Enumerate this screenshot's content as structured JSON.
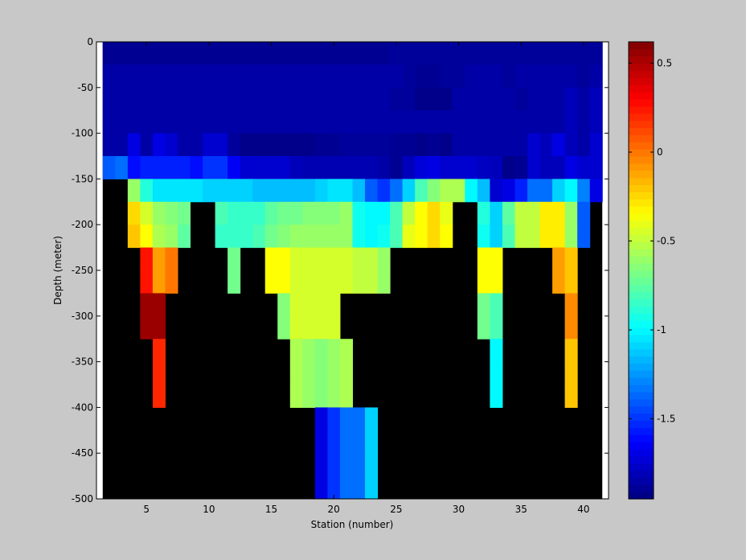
{
  "chart_data": {
    "type": "heatmap",
    "title": "",
    "xlabel": "Station (number)",
    "ylabel": "Depth (meter)",
    "xlim": [
      1,
      42
    ],
    "ylim": [
      -500,
      0
    ],
    "x_ticks": [
      5,
      10,
      15,
      20,
      25,
      30,
      35,
      40
    ],
    "y_ticks": [
      0,
      -50,
      -100,
      -150,
      -200,
      -250,
      -300,
      -350,
      -400,
      -450,
      -500
    ],
    "colorbar": {
      "colormap": "jet",
      "range": [
        -1.95,
        0.62
      ],
      "ticks": [
        0.5,
        0,
        -0.5,
        -1,
        -1.5
      ],
      "tick_labels": [
        "0.5",
        "0",
        "-0.5",
        "-1",
        "-1.5"
      ]
    },
    "missing_color": "#000000",
    "background_color": "#c8c8c8",
    "station_range": [
      2,
      41
    ],
    "depth_bins": [
      {
        "top": 0,
        "bottom": -25,
        "values": "all stations approx -1.9"
      },
      {
        "top": -25,
        "bottom": -100,
        "values": "all stations approx -1.85"
      }
    ],
    "row_values": [
      [
        -1.9,
        -1.9,
        -1.9,
        -1.9,
        -1.9,
        -1.9,
        -1.9,
        -1.9,
        -1.9,
        -1.9,
        -1.9,
        -1.9,
        -1.9,
        -1.9,
        -1.9,
        -1.9,
        -1.9,
        -1.9,
        -1.9,
        -1.9,
        -1.9,
        -1.9,
        -1.9,
        -1.88,
        -1.88,
        -1.88,
        -1.88,
        -1.88,
        -1.88,
        -1.88,
        -1.88,
        -1.88,
        -1.88,
        -1.88,
        -1.88,
        -1.88,
        -1.88,
        -1.88,
        -1.88,
        -1.88
      ],
      [
        -1.85,
        -1.85,
        -1.85,
        -1.85,
        -1.85,
        -1.85,
        -1.85,
        -1.85,
        -1.85,
        -1.85,
        -1.85,
        -1.85,
        -1.85,
        -1.85,
        -1.85,
        -1.85,
        -1.85,
        -1.85,
        -1.85,
        -1.85,
        -1.85,
        -1.85,
        -1.85,
        -1.85,
        -1.88,
        -1.9,
        -1.9,
        -1.88,
        -1.88,
        -1.85,
        -1.85,
        -1.85,
        -1.88,
        -1.85,
        -1.85,
        -1.85,
        -1.85,
        -1.85,
        -1.88,
        -1.85
      ],
      [
        -1.85,
        -1.85,
        -1.85,
        -1.85,
        -1.85,
        -1.85,
        -1.85,
        -1.85,
        -1.85,
        -1.85,
        -1.85,
        -1.85,
        -1.85,
        -1.85,
        -1.85,
        -1.85,
        -1.85,
        -1.85,
        -1.85,
        -1.85,
        -1.85,
        -1.85,
        -1.85,
        -1.88,
        -1.88,
        -1.92,
        -1.92,
        -1.92,
        -1.85,
        -1.85,
        -1.85,
        -1.85,
        -1.85,
        -1.88,
        -1.85,
        -1.85,
        -1.85,
        -1.8,
        -1.85,
        -1.8
      ],
      [
        -1.85,
        -1.85,
        -1.85,
        -1.85,
        -1.85,
        -1.85,
        -1.85,
        -1.85,
        -1.85,
        -1.85,
        -1.85,
        -1.85,
        -1.85,
        -1.85,
        -1.85,
        -1.85,
        -1.85,
        -1.85,
        -1.85,
        -1.85,
        -1.85,
        -1.85,
        -1.85,
        -1.85,
        -1.85,
        -1.85,
        -1.85,
        -1.85,
        -1.85,
        -1.85,
        -1.85,
        -1.85,
        -1.85,
        -1.85,
        -1.85,
        -1.85,
        -1.85,
        -1.8,
        -1.85,
        -1.8
      ],
      [
        -1.85,
        -1.85,
        -1.7,
        -1.85,
        -1.7,
        -1.75,
        -1.85,
        -1.85,
        -1.75,
        -1.75,
        -1.88,
        -1.92,
        -1.92,
        -1.92,
        -1.92,
        -1.92,
        -1.92,
        -1.9,
        -1.9,
        -1.88,
        -1.88,
        -1.88,
        -1.88,
        -1.9,
        -1.9,
        -1.92,
        -1.9,
        -1.92,
        -1.85,
        -1.85,
        -1.85,
        -1.85,
        -1.85,
        -1.85,
        -1.75,
        -1.8,
        -1.7,
        -1.8,
        -1.85,
        -1.75
      ],
      [
        -1.4,
        -1.35,
        -1.6,
        -1.55,
        -1.55,
        -1.55,
        -1.55,
        -1.6,
        -1.5,
        -1.5,
        -1.65,
        -1.75,
        -1.75,
        -1.75,
        -1.75,
        -1.8,
        -1.82,
        -1.82,
        -1.82,
        -1.82,
        -1.82,
        -1.82,
        -1.85,
        -1.9,
        -1.8,
        -1.72,
        -1.7,
        -1.75,
        -1.75,
        -1.75,
        -1.78,
        -1.8,
        -1.92,
        -1.9,
        -1.75,
        -1.8,
        -1.8,
        -1.7,
        -1.75,
        -1.75
      ],
      [
        null,
        null,
        -0.6,
        -0.9,
        -1.05,
        -1.05,
        -1.05,
        -1.05,
        -1.1,
        -1.1,
        -1.1,
        -1.1,
        -1.15,
        -1.15,
        -1.15,
        -1.15,
        -1.15,
        -1.1,
        -1.05,
        -1.05,
        -1.15,
        -1.4,
        -1.5,
        -1.35,
        -1.1,
        -0.8,
        -0.65,
        -0.55,
        -0.55,
        -1.0,
        -1.15,
        -1.75,
        -1.7,
        -1.55,
        -1.35,
        -1.35,
        -1.1,
        -1.0,
        -1.3,
        -1.7
      ],
      [
        null,
        null,
        -0.25,
        -0.45,
        -0.6,
        -0.65,
        -0.7,
        null,
        null,
        -0.8,
        -0.85,
        -0.85,
        -0.85,
        -0.75,
        -0.7,
        -0.7,
        -0.65,
        -0.65,
        -0.65,
        -0.6,
        -0.95,
        -1.0,
        -1.0,
        -0.8,
        -0.5,
        -0.35,
        -0.25,
        -0.4,
        null,
        null,
        -0.9,
        -1.1,
        -0.75,
        -0.5,
        -0.5,
        -0.3,
        -0.3,
        -0.6,
        -1.4
      ],
      [
        null,
        null,
        -0.2,
        -0.35,
        -0.55,
        -0.6,
        -0.75,
        null,
        null,
        -0.85,
        -0.85,
        -0.85,
        -0.8,
        -0.7,
        -0.65,
        -0.6,
        -0.6,
        -0.6,
        -0.6,
        -0.6,
        -0.95,
        -1.0,
        -0.95,
        -0.8,
        -0.4,
        -0.35,
        -0.25,
        -0.35,
        null,
        null,
        -0.95,
        -1.1,
        -0.8,
        -0.5,
        -0.5,
        -0.3,
        -0.3,
        -0.6,
        -1.4
      ],
      [
        null,
        null,
        null,
        0.25,
        -0.1,
        0.0,
        null,
        null,
        null,
        null,
        -0.7,
        null,
        null,
        -0.35,
        -0.35,
        -0.45,
        -0.45,
        -0.45,
        -0.45,
        -0.45,
        -0.5,
        -0.5,
        -0.6,
        null,
        null,
        null,
        null,
        null,
        null,
        null,
        -0.35,
        -0.35,
        null,
        null,
        null,
        null,
        -0.1,
        -0.2
      ],
      [
        null,
        null,
        null,
        0.25,
        -0.1,
        0.0,
        null,
        null,
        null,
        null,
        -0.7,
        null,
        null,
        -0.35,
        -0.35,
        -0.45,
        -0.45,
        -0.45,
        -0.45,
        -0.45,
        -0.5,
        -0.5,
        -0.6,
        null,
        null,
        null,
        null,
        null,
        null,
        null,
        -0.35,
        -0.35,
        null,
        null,
        null,
        null,
        -0.1,
        -0.2
      ],
      [
        null,
        null,
        null,
        0.55,
        0.55,
        null,
        null,
        null,
        null,
        null,
        null,
        null,
        null,
        null,
        -0.65,
        -0.45,
        -0.45,
        -0.45,
        -0.45,
        null,
        null,
        null,
        null,
        null,
        null,
        null,
        null,
        null,
        null,
        null,
        -0.7,
        -0.8,
        null,
        null,
        null,
        null,
        null,
        -0.05
      ],
      [
        null,
        null,
        null,
        0.55,
        0.55,
        null,
        null,
        null,
        null,
        null,
        null,
        null,
        null,
        null,
        -0.65,
        -0.45,
        -0.45,
        -0.45,
        -0.45,
        null,
        null,
        null,
        null,
        null,
        null,
        null,
        null,
        null,
        null,
        null,
        -0.7,
        -0.8,
        null,
        null,
        null,
        null,
        null,
        -0.05
      ],
      [
        null,
        null,
        null,
        null,
        0.2,
        null,
        null,
        null,
        null,
        null,
        null,
        null,
        null,
        null,
        null,
        -0.55,
        -0.6,
        -0.65,
        -0.6,
        -0.55,
        null,
        null,
        null,
        null,
        null,
        null,
        null,
        null,
        null,
        null,
        null,
        -1.0,
        null,
        null,
        null,
        null,
        null,
        -0.2
      ],
      [
        null,
        null,
        null,
        null,
        0.2,
        null,
        null,
        null,
        null,
        null,
        null,
        null,
        null,
        null,
        null,
        -0.55,
        -0.6,
        -0.65,
        -0.6,
        -0.55,
        null,
        null,
        null,
        null,
        null,
        null,
        null,
        null,
        null,
        null,
        null,
        -1.0,
        null,
        null,
        null,
        null,
        null,
        -0.2
      ],
      [
        null,
        null,
        null,
        null,
        0.2,
        null,
        null,
        null,
        null,
        null,
        null,
        null,
        null,
        null,
        null,
        -0.55,
        -0.6,
        -0.65,
        -0.6,
        -0.55,
        null,
        null,
        null,
        null,
        null,
        null,
        null,
        null,
        null,
        null,
        null,
        -1.0,
        null,
        null,
        null,
        null,
        null,
        -0.2
      ],
      [
        null,
        null,
        null,
        null,
        null,
        null,
        null,
        null,
        null,
        null,
        null,
        null,
        null,
        null,
        null,
        null,
        null,
        -1.7,
        -1.5,
        -1.35,
        -1.35,
        -1.1
      ],
      [
        null,
        null,
        null,
        null,
        null,
        null,
        null,
        null,
        null,
        null,
        null,
        null,
        null,
        null,
        null,
        null,
        null,
        -1.7,
        -1.5,
        -1.35,
        -1.35,
        -1.1
      ],
      [
        null,
        null,
        null,
        null,
        null,
        null,
        null,
        null,
        null,
        null,
        null,
        null,
        null,
        null,
        null,
        null,
        null,
        -1.7,
        -1.5,
        -1.35,
        -1.35,
        -1.1
      ],
      [
        null,
        null,
        null,
        null,
        null,
        null,
        null,
        null,
        null,
        null,
        null,
        null,
        null,
        null,
        null,
        null,
        null,
        -1.7,
        -1.5,
        -1.35,
        -1.35,
        -1.1
      ]
    ],
    "row_depths": [
      [
        0,
        -25
      ],
      [
        -25,
        -50
      ],
      [
        -50,
        -75
      ],
      [
        -75,
        -100
      ],
      [
        -100,
        -125
      ],
      [
        -125,
        -150
      ],
      [
        -150,
        -175
      ],
      [
        -175,
        -200
      ],
      [
        -200,
        -225
      ],
      [
        -225,
        -250
      ],
      [
        -250,
        -275
      ],
      [
        -275,
        -300
      ],
      [
        -300,
        -325
      ],
      [
        -325,
        -350
      ],
      [
        -350,
        -375
      ],
      [
        -375,
        -400
      ],
      [
        -400,
        -425
      ],
      [
        -425,
        -450
      ],
      [
        -450,
        -475
      ],
      [
        -475,
        -500
      ]
    ],
    "row_start_station": [
      2,
      2,
      2,
      2,
      2,
      2,
      2,
      2,
      2,
      2,
      2,
      2,
      2,
      2,
      2,
      2,
      2,
      2,
      2,
      2
    ]
  }
}
